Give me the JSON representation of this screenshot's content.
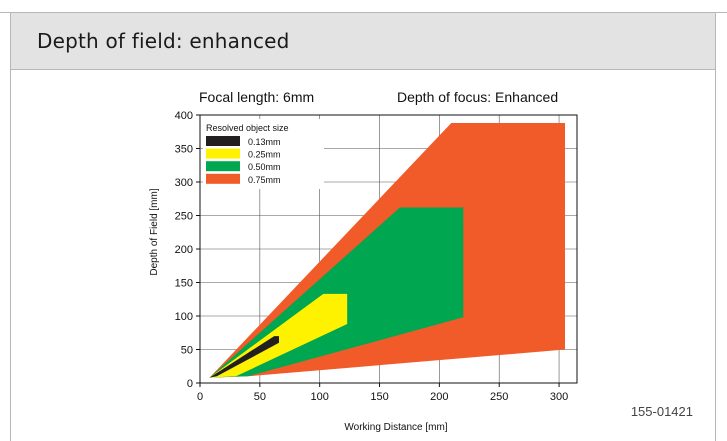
{
  "header": {
    "title": "Depth of field: enhanced"
  },
  "figure_code": "155-01421",
  "colors": {
    "s013": "#231f20",
    "s025": "#fff200",
    "s050": "#00a650",
    "s075": "#f15a29"
  },
  "chart_data": {
    "type": "area",
    "title_left": "Focal length: 6mm",
    "title_right": "Depth of focus: Enhanced",
    "xlabel": "Working Distance [mm]",
    "ylabel": "Depth of Field [mm]",
    "xlim": [
      0,
      315
    ],
    "ylim": [
      0,
      400
    ],
    "xticks": [
      0,
      50,
      100,
      150,
      200,
      250,
      300
    ],
    "yticks": [
      0,
      50,
      100,
      150,
      200,
      250,
      300,
      350,
      400
    ],
    "grid": true,
    "legend": {
      "title": "Resolved object size",
      "placement": "top-left"
    },
    "series": [
      {
        "name": "0.75mm",
        "color": "#f15a29",
        "polygon": [
          [
            8,
            8
          ],
          [
            210,
            388
          ],
          [
            305,
            388
          ],
          [
            305,
            50
          ],
          [
            40,
            10
          ]
        ]
      },
      {
        "name": "0.50mm",
        "color": "#00a650",
        "polygon": [
          [
            8,
            8
          ],
          [
            167,
            262
          ],
          [
            220,
            262
          ],
          [
            220,
            98
          ],
          [
            40,
            10
          ]
        ]
      },
      {
        "name": "0.25mm",
        "color": "#fff200",
        "polygon": [
          [
            8,
            8
          ],
          [
            103,
            133
          ],
          [
            123,
            133
          ],
          [
            123,
            88
          ],
          [
            30,
            10
          ]
        ]
      },
      {
        "name": "0.13mm",
        "color": "#231f20",
        "polygon": [
          [
            8,
            8
          ],
          [
            62,
            70
          ],
          [
            66,
            70
          ],
          [
            66,
            60
          ],
          [
            14,
            10
          ]
        ]
      }
    ]
  }
}
